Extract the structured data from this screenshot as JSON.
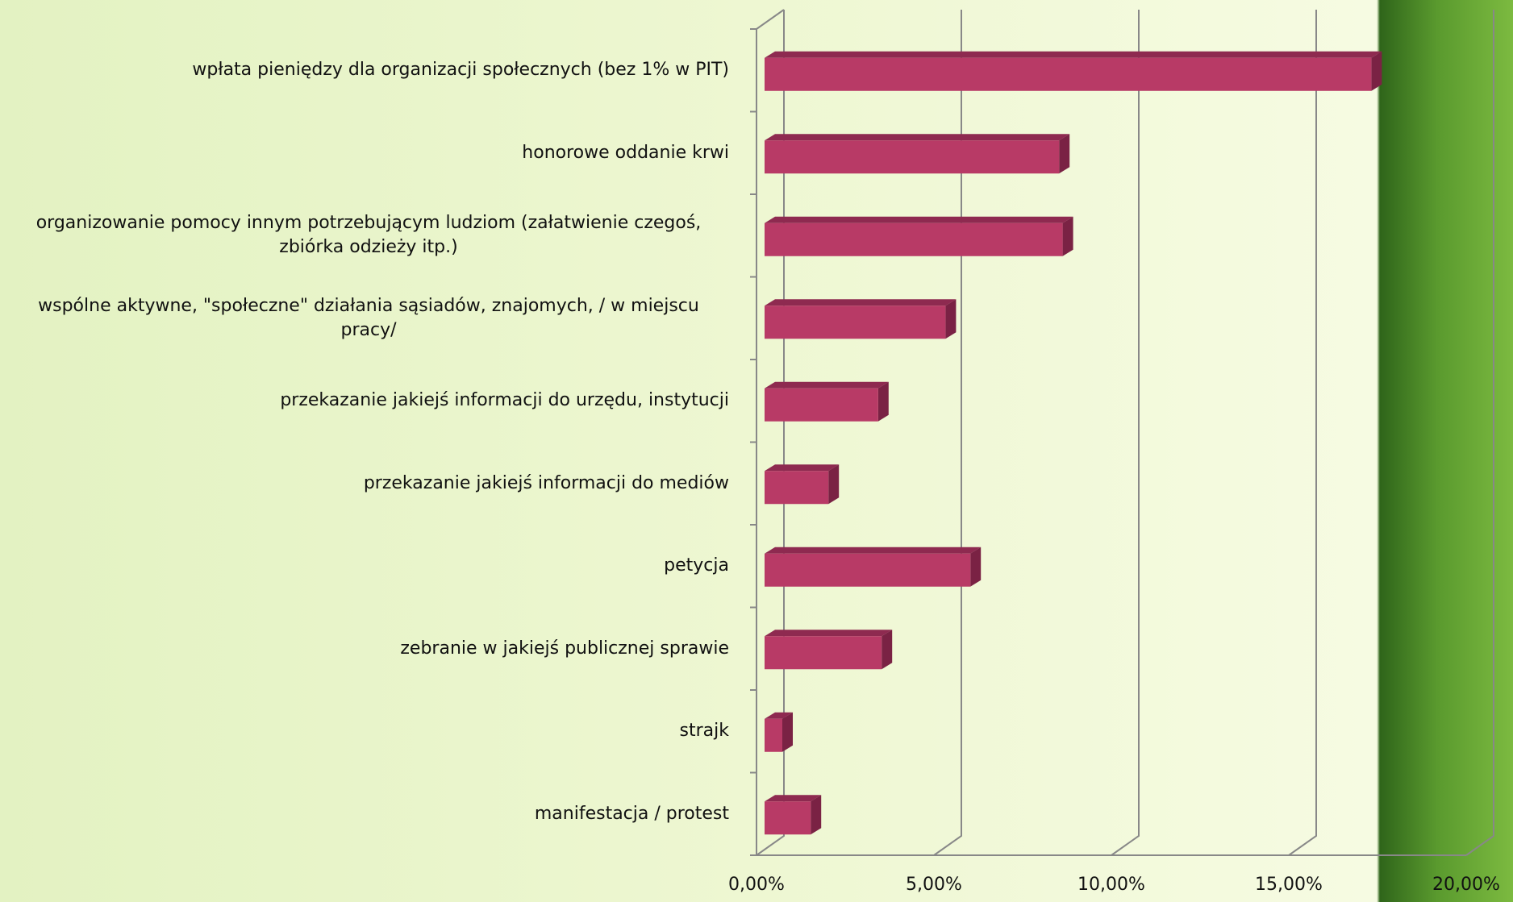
{
  "chart_data": {
    "type": "bar3d",
    "orientation": "horizontal",
    "categories": [
      "wpłata pieniędzy dla organizacji społecznych (bez 1% w PIT)",
      "honorowe oddanie krwi",
      "organizowanie pomocy innym potrzebującym ludziom (załatwienie czegoś, zbiórka odzieży itp.)",
      "wspólne aktywne, \"społeczne\" działania sąsiadów, znajomych, / w miejscu pracy/",
      "przekazanie jakiejś informacji do urzędu, instytucji",
      "przekazanie jakiejś informacji do mediów",
      "petycja",
      "zebranie w jakiejś publicznej sprawie",
      "strajk",
      "manifestacja / protest"
    ],
    "values": [
      17.1,
      8.3,
      8.4,
      5.1,
      3.2,
      1.8,
      5.8,
      3.3,
      0.5,
      1.3
    ],
    "color": "#b83a66",
    "xlim": [
      0,
      20
    ],
    "xticks": [
      {
        "value": 0,
        "label": "0,00%"
      },
      {
        "value": 5,
        "label": "5,00%"
      },
      {
        "value": 10,
        "label": "10,00%"
      },
      {
        "value": 15,
        "label": "15,00%"
      },
      {
        "value": 20,
        "label": "20,00%"
      }
    ],
    "grid": true
  }
}
